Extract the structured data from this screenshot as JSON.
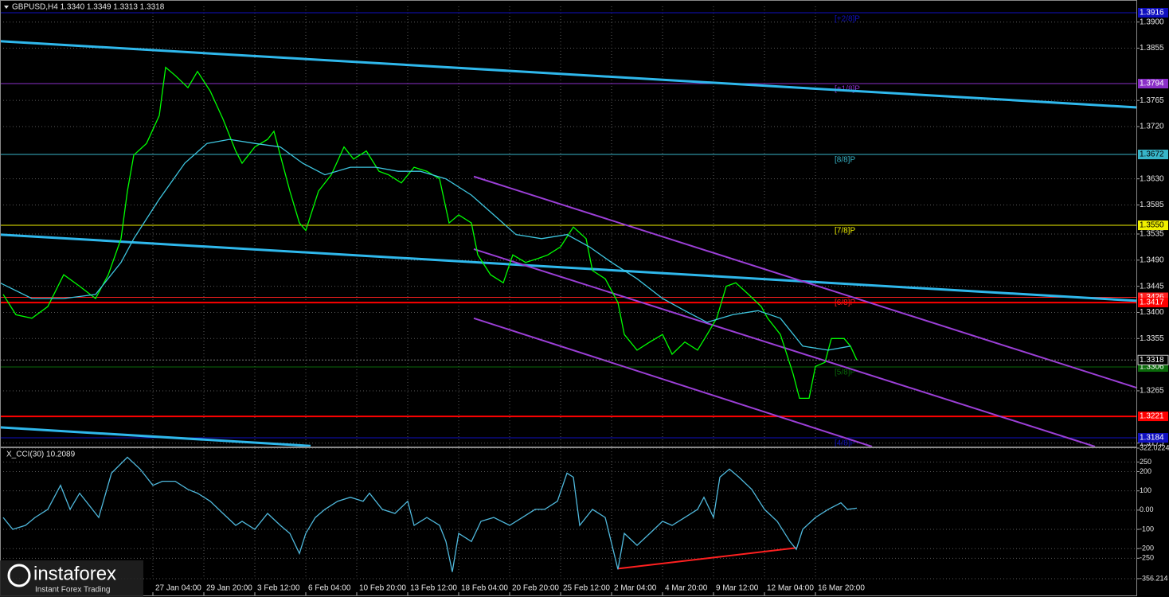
{
  "chart_data": [
    {
      "type": "line",
      "title": "GBPUSD,H4 1.3340 1.3349 1.3313 1.3318",
      "xlim": [
        6,
        363
      ],
      "ylim": [
        1.3169,
        1.3927
      ],
      "grid": true,
      "xticks": [
        {
          "value": 54,
          "label": "27 Jan 04:00"
        },
        {
          "value": 70,
          "label": "29 Jan 20:00"
        },
        {
          "value": 86,
          "label": "3 Feb 12:00"
        },
        {
          "value": 102,
          "label": "6 Feb 04:00"
        },
        {
          "value": 118,
          "label": "10 Feb 20:00"
        },
        {
          "value": 134,
          "label": "13 Feb 12:00"
        },
        {
          "value": 150,
          "label": "18 Feb 04:00"
        },
        {
          "value": 166,
          "label": "20 Feb 20:00"
        },
        {
          "value": 182,
          "label": "25 Feb 12:00"
        },
        {
          "value": 198,
          "label": "2 Mar 04:00"
        },
        {
          "value": 214,
          "label": "4 Mar 20:00"
        },
        {
          "value": 230,
          "label": "9 Mar 12:00"
        },
        {
          "value": 246,
          "label": "12 Mar 04:00"
        },
        {
          "value": 262,
          "label": "16 Mar 20:00"
        }
      ],
      "yticks": [
        {
          "value": 1.39,
          "label": "1.3900"
        },
        1.3855,
        1.3765,
        {
          "value": 1.372,
          "label": "1.3720"
        },
        {
          "value": 1.363,
          "label": "1.3630"
        },
        1.3585,
        1.3535,
        {
          "value": 1.349,
          "label": "1.3490"
        },
        1.3445,
        {
          "value": 1.34,
          "label": "1.3400"
        },
        1.3355,
        1.3265,
        1.3175
      ],
      "series": [
        {
          "color": "#00ff00",
          "x": [
            7,
            11,
            16,
            21,
            26,
            31,
            36,
            40,
            44,
            46,
            48,
            52,
            56,
            58,
            61,
            65,
            68,
            72,
            76,
            80,
            82,
            86,
            90,
            92,
            95,
            97,
            100,
            102,
            106,
            110,
            114,
            117,
            121,
            125,
            128,
            132,
            136,
            140,
            144,
            147,
            150,
            154,
            156,
            160,
            164,
            167,
            171,
            175,
            178,
            182,
            186,
            190,
            192,
            196,
            200,
            202,
            206,
            210,
            214,
            217,
            221,
            225,
            228,
            231,
            234,
            237,
            241,
            245,
            247,
            251,
            255,
            257,
            260,
            262,
            265,
            267,
            271,
            273,
            275
          ],
          "values": [
            1.3431,
            1.3396,
            1.339,
            1.341,
            1.3465,
            1.3445,
            1.3424,
            1.3465,
            1.3527,
            1.3609,
            1.3671,
            1.3691,
            1.3739,
            1.3822,
            1.3808,
            1.3787,
            1.3815,
            1.3781,
            1.3733,
            1.3678,
            1.3657,
            1.3685,
            1.3698,
            1.3712,
            1.365,
            1.3609,
            1.3554,
            1.3541,
            1.3609,
            1.3637,
            1.3685,
            1.3664,
            1.3678,
            1.3643,
            1.3637,
            1.3623,
            1.365,
            1.3643,
            1.363,
            1.3554,
            1.3568,
            1.3554,
            1.3499,
            1.3465,
            1.3451,
            1.3499,
            1.3486,
            1.3493,
            1.3499,
            1.3513,
            1.3547,
            1.3527,
            1.3472,
            1.3458,
            1.3417,
            1.3362,
            1.3335,
            1.3349,
            1.3362,
            1.3328,
            1.3349,
            1.3335,
            1.3362,
            1.339,
            1.3445,
            1.3451,
            1.3431,
            1.341,
            1.339,
            1.3362,
            1.3294,
            1.3252,
            1.3252,
            1.3307,
            1.3314,
            1.3355,
            1.3355,
            1.3342,
            1.3318
          ]
        },
        {
          "color": "#3ec6e0",
          "x": [
            6,
            16,
            26,
            36,
            44,
            48,
            56,
            64,
            71,
            78,
            86,
            94,
            101,
            108,
            116,
            124,
            131,
            138,
            146,
            154,
            161,
            168,
            176,
            184,
            191,
            198,
            206,
            214,
            221,
            228,
            236,
            244,
            251,
            258,
            266,
            273
          ],
          "values": [
            1.3451,
            1.3424,
            1.3424,
            1.3431,
            1.3486,
            1.3527,
            1.3595,
            1.3657,
            1.3691,
            1.3698,
            1.3691,
            1.3685,
            1.3657,
            1.3637,
            1.365,
            1.365,
            1.3643,
            1.3643,
            1.363,
            1.3602,
            1.3568,
            1.3534,
            1.3527,
            1.3534,
            1.3513,
            1.3486,
            1.3458,
            1.3424,
            1.3403,
            1.3383,
            1.3396,
            1.3403,
            1.339,
            1.3342,
            1.3335,
            1.3342
          ]
        }
      ],
      "trendlines": [
        {
          "x": [
            6,
            363
          ],
          "values": [
            1.3867,
            1.3753
          ],
          "color": "#2fb8ec",
          "width": 3
        },
        {
          "x": [
            6,
            363
          ],
          "values": [
            1.3534,
            1.342
          ],
          "color": "#2fb8ec",
          "width": 3
        },
        {
          "x": [
            6,
            103.5
          ],
          "values": [
            1.3202,
            1.317
          ],
          "color": "#2fb8ec",
          "width": 3
        },
        {
          "x": [
            154.75,
            363
          ],
          "values": [
            1.3634,
            1.327
          ],
          "color": "#9b3fd6",
          "width": 2
        },
        {
          "x": [
            154.75,
            349.75
          ],
          "values": [
            1.3509,
            1.3169
          ],
          "color": "#9b3fd6",
          "width": 2
        },
        {
          "x": [
            154.75,
            279.75
          ],
          "values": [
            1.339,
            1.3169
          ],
          "color": "#9b3fd6",
          "width": 2
        }
      ],
      "levels": [
        {
          "value": 1.3916,
          "tag": "[+2/8]P",
          "color": "#1010c0",
          "width": 1
        },
        {
          "value": 1.3794,
          "tag": "[+1/8]P",
          "color": "#8a2fc8",
          "width": 1
        },
        {
          "value": 1.3672,
          "tag": "[8/8]P",
          "color": "#37b5c8",
          "width": 1
        },
        {
          "value": 1.355,
          "label": "1.3550",
          "tag": "[7/8]P",
          "color": "#f0f000",
          "width": 1
        },
        {
          "value": 1.3426,
          "tag": "[6/8]P",
          "color": "#ff2020",
          "width": 1
        },
        {
          "value": 1.3417,
          "color": "#ff0000",
          "width": 2
        },
        {
          "value": 1.3306,
          "tag": "[5/8]P",
          "color": "#0a6a0a",
          "width": 1
        },
        {
          "value": 1.3221,
          "color": "#ff0000",
          "width": 2
        },
        {
          "value": 1.3184,
          "tag": "[4/8]P",
          "color": "#1010c0",
          "width": 1
        }
      ],
      "current_price": 1.3318
    },
    {
      "type": "line",
      "title": "X_CCI(30) 10.2089",
      "xlim": [
        6,
        363
      ],
      "ylim": [
        -356.214,
        322.0224
      ],
      "grid": true,
      "yticks": [
        322.0224,
        250,
        200,
        100,
        {
          "value": 0,
          "label": "0.00"
        },
        -100,
        -200,
        -250,
        -356.214
      ],
      "series": [
        {
          "color": "#4fb8dc",
          "x": [
            7,
            10,
            14,
            17,
            21,
            25,
            28,
            31,
            35,
            37,
            41,
            46,
            50,
            54,
            57,
            61,
            65,
            68,
            72,
            76,
            80,
            82,
            86,
            90,
            94,
            97,
            100,
            102,
            105,
            108,
            112,
            116,
            120,
            122,
            126,
            130,
            134,
            136,
            140,
            144,
            146,
            148,
            150,
            154,
            157,
            161,
            166,
            170,
            174,
            177,
            181,
            184,
            186,
            188,
            192,
            196,
            200,
            202,
            206,
            210,
            214,
            217,
            221,
            225,
            227,
            230,
            232,
            235,
            238,
            242,
            246,
            250,
            254,
            256,
            258,
            262,
            266,
            270,
            272,
            275
          ],
          "values": [
            -38,
            -100,
            -79,
            -38,
            4,
            129,
            4,
            88,
            4,
            -38,
            192,
            275,
            213,
            129,
            150,
            150,
            108,
            88,
            46,
            -17,
            -79,
            -58,
            -100,
            -17,
            -79,
            -121,
            -225,
            -121,
            -38,
            4,
            46,
            67,
            46,
            88,
            4,
            -17,
            46,
            -79,
            -38,
            -79,
            -163,
            -321,
            -121,
            -163,
            -58,
            -38,
            -79,
            -38,
            4,
            4,
            46,
            192,
            171,
            -79,
            4,
            -38,
            -308,
            -121,
            -183,
            -121,
            -58,
            -79,
            -38,
            4,
            67,
            -38,
            171,
            213,
            171,
            108,
            4,
            -58,
            -163,
            -204,
            -100,
            -38,
            4,
            38,
            4,
            10
          ]
        }
      ],
      "trendlines": [
        {
          "x": [
            200,
            256
          ],
          "values": [
            -304,
            -196
          ],
          "color": "#ff2020",
          "width": 2
        }
      ]
    }
  ],
  "logo": {
    "name": "instaforex",
    "tagline": "Instant Forex Trading"
  }
}
